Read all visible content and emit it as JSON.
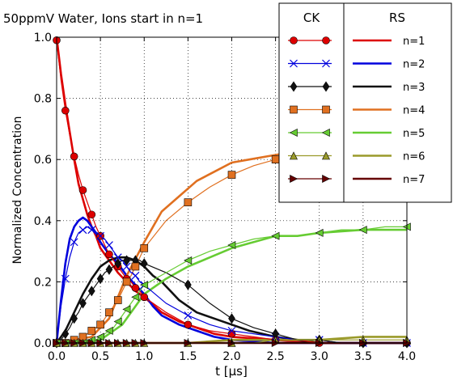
{
  "chart_data": {
    "type": "line",
    "title": "50ppmV Water, Ions start in n=1",
    "xlabel": "t [μs]",
    "ylabel": "Normalized Concentration",
    "xlim": [
      0.0,
      4.0
    ],
    "ylim": [
      0.0,
      1.0
    ],
    "xticks": [
      "0.0",
      "0.5",
      "1.0",
      "1.5",
      "2.0",
      "2.5",
      "3.0",
      "3.5",
      "4.0"
    ],
    "yticks": [
      "0.0",
      "0.2",
      "0.4",
      "0.6",
      "0.8",
      "1.0"
    ],
    "grid": true,
    "legend": {
      "placement": "top-right",
      "ck_header": "CK",
      "rs_header": "RS",
      "labels": [
        "n=1",
        "n=2",
        "n=3",
        "n=4",
        "n=5",
        "n=6",
        "n=7"
      ]
    },
    "series": [
      {
        "name": "n=1",
        "color": "#dd0000",
        "ck_marker": "circle",
        "ck_x": [
          0.0,
          0.05,
          0.1,
          0.15,
          0.2,
          0.25,
          0.3,
          0.35,
          0.4,
          0.45,
          0.5,
          0.55,
          0.6,
          0.65,
          0.7,
          0.75,
          0.8,
          0.85,
          0.9,
          0.95,
          1.0,
          1.25,
          1.5,
          1.75,
          2.0,
          2.25,
          2.5,
          2.75,
          3.0,
          3.25,
          3.5,
          3.75,
          4.0
        ],
        "ck_y": [
          0.99,
          0.86,
          0.76,
          0.68,
          0.61,
          0.55,
          0.5,
          0.46,
          0.42,
          0.38,
          0.35,
          0.32,
          0.29,
          0.27,
          0.25,
          0.23,
          0.21,
          0.2,
          0.18,
          0.17,
          0.15,
          0.1,
          0.06,
          0.04,
          0.03,
          0.02,
          0.01,
          0.01,
          0.0,
          0.0,
          0.0,
          0.0,
          0.0
        ],
        "rs_x": [
          0.0,
          0.05,
          0.1,
          0.15,
          0.2,
          0.25,
          0.3,
          0.35,
          0.4,
          0.45,
          0.5,
          0.6,
          0.7,
          0.8,
          0.9,
          1.0,
          1.2,
          1.4,
          1.6,
          1.8,
          2.0,
          2.5,
          3.0,
          3.5,
          4.0
        ],
        "rs_y": [
          1.0,
          0.88,
          0.78,
          0.69,
          0.6,
          0.52,
          0.47,
          0.42,
          0.38,
          0.35,
          0.31,
          0.27,
          0.23,
          0.2,
          0.17,
          0.15,
          0.1,
          0.07,
          0.05,
          0.03,
          0.02,
          0.01,
          0.0,
          0.0,
          0.0
        ]
      },
      {
        "name": "n=2",
        "color": "#0000dd",
        "ck_marker": "x",
        "ck_x": [
          0.0,
          0.05,
          0.1,
          0.15,
          0.2,
          0.25,
          0.3,
          0.35,
          0.4,
          0.45,
          0.5,
          0.55,
          0.6,
          0.65,
          0.7,
          0.75,
          0.8,
          0.85,
          0.9,
          0.95,
          1.0,
          1.25,
          1.5,
          1.75,
          2.0,
          2.25,
          2.5,
          2.75,
          3.0,
          3.25,
          3.5,
          3.75,
          4.0
        ],
        "ck_y": [
          0.0,
          0.12,
          0.21,
          0.28,
          0.33,
          0.36,
          0.37,
          0.38,
          0.37,
          0.36,
          0.35,
          0.34,
          0.32,
          0.3,
          0.28,
          0.27,
          0.25,
          0.23,
          0.22,
          0.2,
          0.19,
          0.13,
          0.09,
          0.06,
          0.04,
          0.03,
          0.02,
          0.01,
          0.01,
          0.0,
          0.0,
          0.0,
          0.0
        ],
        "rs_x": [
          0.0,
          0.05,
          0.1,
          0.15,
          0.2,
          0.25,
          0.3,
          0.35,
          0.4,
          0.45,
          0.5,
          0.6,
          0.7,
          0.8,
          0.9,
          1.0,
          1.1,
          1.2,
          1.4,
          1.6,
          1.8,
          2.0,
          2.5,
          3.0,
          4.0
        ],
        "rs_y": [
          0.0,
          0.14,
          0.26,
          0.34,
          0.38,
          0.4,
          0.41,
          0.4,
          0.38,
          0.36,
          0.33,
          0.29,
          0.26,
          0.22,
          0.19,
          0.16,
          0.12,
          0.09,
          0.06,
          0.04,
          0.02,
          0.01,
          0.0,
          0.0,
          0.0
        ]
      },
      {
        "name": "n=3",
        "color": "#111111",
        "ck_marker": "diamond",
        "ck_x": [
          0.0,
          0.05,
          0.1,
          0.15,
          0.2,
          0.25,
          0.3,
          0.35,
          0.4,
          0.45,
          0.5,
          0.55,
          0.6,
          0.65,
          0.7,
          0.75,
          0.8,
          0.85,
          0.9,
          0.95,
          1.0,
          1.25,
          1.5,
          1.75,
          2.0,
          2.25,
          2.5,
          2.75,
          3.0,
          3.25,
          3.5,
          3.75,
          4.0
        ],
        "ck_y": [
          0.0,
          0.01,
          0.03,
          0.05,
          0.08,
          0.1,
          0.13,
          0.15,
          0.17,
          0.19,
          0.21,
          0.23,
          0.24,
          0.25,
          0.26,
          0.27,
          0.27,
          0.27,
          0.27,
          0.27,
          0.26,
          0.23,
          0.19,
          0.13,
          0.08,
          0.05,
          0.03,
          0.01,
          0.01,
          0.0,
          0.0,
          0.0,
          0.0
        ],
        "rs_x": [
          0.0,
          0.1,
          0.2,
          0.3,
          0.4,
          0.5,
          0.6,
          0.7,
          0.8,
          0.9,
          1.0,
          1.1,
          1.2,
          1.3,
          1.4,
          1.6,
          1.8,
          2.0,
          2.2,
          2.5,
          2.75,
          3.0,
          3.5,
          4.0
        ],
        "rs_y": [
          0.0,
          0.04,
          0.1,
          0.16,
          0.21,
          0.25,
          0.27,
          0.28,
          0.28,
          0.27,
          0.25,
          0.22,
          0.2,
          0.17,
          0.14,
          0.1,
          0.08,
          0.06,
          0.04,
          0.02,
          0.01,
          0.0,
          0.0,
          0.0
        ]
      },
      {
        "name": "n=4",
        "color": "#e07020",
        "ck_marker": "square",
        "ck_x": [
          0.0,
          0.05,
          0.1,
          0.15,
          0.2,
          0.25,
          0.3,
          0.35,
          0.4,
          0.45,
          0.5,
          0.55,
          0.6,
          0.65,
          0.7,
          0.75,
          0.8,
          0.85,
          0.9,
          0.95,
          1.0,
          1.25,
          1.5,
          1.75,
          2.0,
          2.25,
          2.5,
          2.75,
          3.0,
          3.25,
          3.5,
          3.75,
          4.0
        ],
        "ck_y": [
          0.0,
          0.0,
          0.0,
          0.0,
          0.01,
          0.01,
          0.02,
          0.03,
          0.04,
          0.05,
          0.06,
          0.08,
          0.1,
          0.12,
          0.14,
          0.17,
          0.2,
          0.22,
          0.25,
          0.28,
          0.31,
          0.4,
          0.46,
          0.51,
          0.55,
          0.58,
          0.6,
          0.62,
          0.63,
          0.63,
          0.64,
          0.64,
          0.64
        ],
        "rs_x": [
          0.0,
          0.4,
          0.6,
          0.8,
          1.0,
          1.2,
          1.4,
          1.6,
          1.8,
          2.0,
          2.2,
          2.4,
          2.6,
          2.8,
          3.0,
          3.5,
          4.0
        ],
        "rs_y": [
          0.0,
          0.02,
          0.08,
          0.22,
          0.33,
          0.43,
          0.48,
          0.53,
          0.56,
          0.59,
          0.6,
          0.61,
          0.62,
          0.62,
          0.63,
          0.63,
          0.63
        ]
      },
      {
        "name": "n=5",
        "color": "#66cc33",
        "ck_marker": "tri-left",
        "ck_x": [
          0.0,
          0.05,
          0.1,
          0.15,
          0.2,
          0.25,
          0.3,
          0.35,
          0.4,
          0.45,
          0.5,
          0.55,
          0.6,
          0.65,
          0.7,
          0.75,
          0.8,
          0.85,
          0.9,
          0.95,
          1.0,
          1.25,
          1.5,
          1.75,
          2.0,
          2.25,
          2.5,
          2.75,
          3.0,
          3.25,
          3.5,
          3.75,
          4.0
        ],
        "ck_y": [
          0.0,
          0.0,
          0.0,
          0.0,
          0.0,
          0.0,
          0.0,
          0.0,
          0.01,
          0.01,
          0.02,
          0.03,
          0.04,
          0.05,
          0.07,
          0.09,
          0.11,
          0.13,
          0.15,
          0.17,
          0.19,
          0.23,
          0.27,
          0.3,
          0.32,
          0.34,
          0.35,
          0.35,
          0.36,
          0.37,
          0.37,
          0.38,
          0.38
        ],
        "rs_x": [
          0.0,
          0.5,
          0.75,
          1.0,
          1.25,
          1.5,
          1.75,
          2.0,
          2.25,
          2.5,
          2.75,
          3.0,
          3.5,
          4.0
        ],
        "rs_y": [
          0.0,
          0.01,
          0.06,
          0.16,
          0.21,
          0.25,
          0.28,
          0.31,
          0.33,
          0.35,
          0.35,
          0.36,
          0.37,
          0.37
        ]
      },
      {
        "name": "n=6",
        "color": "#9a9a2a",
        "ck_marker": "triangle",
        "ck_x": [
          0.0,
          0.05,
          0.1,
          0.15,
          0.2,
          0.25,
          0.3,
          0.35,
          0.4,
          0.45,
          0.5,
          0.55,
          0.6,
          0.65,
          0.7,
          0.75,
          0.8,
          0.85,
          0.9,
          0.95,
          1.0,
          1.25,
          1.5,
          1.75,
          2.0,
          2.25,
          2.5,
          2.75,
          3.0,
          3.25,
          3.5,
          3.75,
          4.0
        ],
        "ck_y": [
          0.0,
          0.0,
          0.0,
          0.0,
          0.0,
          0.0,
          0.0,
          0.0,
          0.0,
          0.0,
          0.0,
          0.0,
          0.0,
          0.0,
          0.0,
          0.0,
          0.0,
          0.0,
          0.0,
          0.0,
          0.0,
          0.0,
          0.0,
          0.0,
          0.0,
          0.0,
          0.01,
          0.01,
          0.01,
          0.01,
          0.01,
          0.01,
          0.01
        ],
        "rs_x": [
          0.0,
          1.5,
          2.0,
          2.5,
          3.0,
          3.5,
          4.0
        ],
        "rs_y": [
          0.0,
          0.0,
          0.01,
          0.01,
          0.01,
          0.02,
          0.02
        ]
      },
      {
        "name": "n=7",
        "color": "#660000",
        "ck_marker": "tri-right",
        "ck_x": [
          0.0,
          0.05,
          0.1,
          0.15,
          0.2,
          0.25,
          0.3,
          0.35,
          0.4,
          0.45,
          0.5,
          0.55,
          0.6,
          0.65,
          0.7,
          0.75,
          0.8,
          0.85,
          0.9,
          0.95,
          1.0,
          1.25,
          1.5,
          1.75,
          2.0,
          2.25,
          2.5,
          2.75,
          3.0,
          3.25,
          3.5,
          3.75,
          4.0
        ],
        "ck_y": [
          0.0,
          0.0,
          0.0,
          0.0,
          0.0,
          0.0,
          0.0,
          0.0,
          0.0,
          0.0,
          0.0,
          0.0,
          0.0,
          0.0,
          0.0,
          0.0,
          0.0,
          0.0,
          0.0,
          0.0,
          0.0,
          0.0,
          0.0,
          0.0,
          0.0,
          0.0,
          0.0,
          0.0,
          0.0,
          0.0,
          0.0,
          0.0,
          0.0
        ],
        "rs_x": [
          0.0,
          4.0
        ],
        "rs_y": [
          0.0,
          0.0
        ]
      }
    ]
  }
}
